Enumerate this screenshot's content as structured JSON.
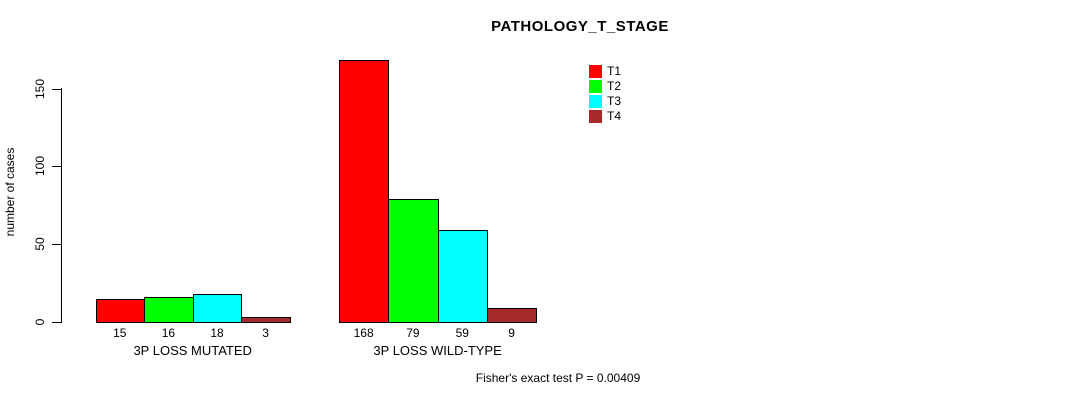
{
  "title": "PATHOLOGY_T_STAGE",
  "footer_note": "Fisher's exact test P = 0.00409",
  "colors": {
    "background": "#FFFFFF",
    "axis": "#000000",
    "bar_border": "#000000",
    "text": "#000000"
  },
  "chart_data": {
    "type": "bar",
    "title": "PATHOLOGY_T_STAGE",
    "xlabel": "",
    "ylabel": "number of cases",
    "ylim": [
      0,
      168
    ],
    "yticks": [
      0,
      50,
      100,
      150
    ],
    "grid": false,
    "legend_position": "top-right",
    "categories": [
      "3P LOSS MUTATED",
      "3P LOSS WILD-TYPE"
    ],
    "series": [
      {
        "name": "T1",
        "color": "#FF0000",
        "values": [
          15,
          168
        ]
      },
      {
        "name": "T2",
        "color": "#00FF00",
        "values": [
          16,
          79
        ]
      },
      {
        "name": "T3",
        "color": "#00FFFF",
        "values": [
          18,
          59
        ]
      },
      {
        "name": "T4",
        "color": "#A52A2A",
        "values": [
          3,
          9
        ]
      }
    ],
    "bar_value_labels": [
      [
        "15",
        "16",
        "18",
        "3"
      ],
      [
        "168",
        "79",
        "59",
        "9"
      ]
    ],
    "annotation": "Fisher's exact test P = 0.00409"
  }
}
